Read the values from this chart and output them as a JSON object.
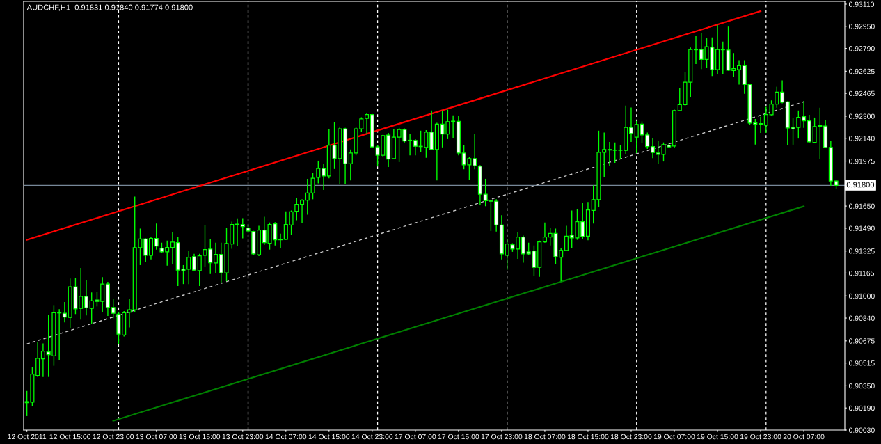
{
  "chart_data": {
    "type": "candlestick",
    "title": "AUDCHF,H1  0.91831 0.91840 0.91774 0.91800",
    "categories": [
      "12 Oct 2011",
      null,
      null,
      null,
      null,
      null,
      null,
      null,
      "12 Oct 15:00",
      null,
      null,
      null,
      null,
      null,
      null,
      null,
      "12 Oct 23:00",
      null,
      null,
      null,
      null,
      null,
      null,
      null,
      "13 Oct 07:00",
      null,
      null,
      null,
      null,
      null,
      null,
      null,
      "13 Oct 15:00",
      null,
      null,
      null,
      null,
      null,
      null,
      null,
      "13 Oct 23:00",
      null,
      null,
      null,
      null,
      null,
      null,
      null,
      "14 Oct 07:00",
      null,
      null,
      null,
      null,
      null,
      null,
      null,
      "14 Oct 15:00",
      null,
      null,
      null,
      null,
      null,
      null,
      null,
      "14 Oct 23:00",
      null,
      null,
      null,
      null,
      null,
      null,
      null,
      "17 Oct 07:00",
      null,
      null,
      null,
      null,
      null,
      null,
      null,
      "17 Oct 15:00",
      null,
      null,
      null,
      null,
      null,
      null,
      null,
      "17 Oct 23:00",
      null,
      null,
      null,
      null,
      null,
      null,
      null,
      "18 Oct 07:00",
      null,
      null,
      null,
      null,
      null,
      null,
      null,
      "18 Oct 15:00",
      null,
      null,
      null,
      null,
      null,
      null,
      null,
      "18 Oct 23:00",
      null,
      null,
      null,
      null,
      null,
      null,
      null,
      "19 Oct 07:00",
      null,
      null,
      null,
      null,
      null,
      null,
      null,
      "19 Oct 15:00",
      null,
      null,
      null,
      null,
      null,
      null,
      null,
      "19 Oct 23:00",
      null,
      null,
      null,
      null,
      null,
      null,
      null,
      "20 Oct 07:00",
      null,
      null,
      null,
      null,
      null,
      null
    ],
    "series": [
      {
        "color": "#00ff00",
        "ohlc": [
          [
            0.90228,
            0.90313,
            0.90131,
            0.90236
          ],
          [
            0.90232,
            0.90485,
            0.90201,
            0.90434
          ],
          [
            0.90424,
            0.90667,
            0.90414,
            0.90549
          ],
          [
            0.90545,
            0.90657,
            0.90414,
            0.906
          ],
          [
            0.90596,
            0.90863,
            0.90414,
            0.90576
          ],
          [
            0.90566,
            0.90934,
            0.90495,
            0.90879
          ],
          [
            0.90877,
            0.90904,
            0.90535,
            0.90881
          ],
          [
            0.90875,
            0.90956,
            0.90809,
            0.90847
          ],
          [
            0.90845,
            0.91126,
            0.90768,
            0.91066
          ],
          [
            0.91066,
            0.91132,
            0.90869,
            0.90906
          ],
          [
            0.9091,
            0.91203,
            0.90829,
            0.90997
          ],
          [
            0.90997,
            0.91116,
            0.90859,
            0.90914
          ],
          [
            0.9091,
            0.91025,
            0.90798,
            0.90964
          ],
          [
            0.9097,
            0.91031,
            0.90924,
            0.9096
          ],
          [
            0.9096,
            0.91136,
            0.90883,
            0.91086
          ],
          [
            0.91086,
            0.91102,
            0.90855,
            0.90916
          ],
          [
            0.90916,
            0.90977,
            0.90839,
            0.90875
          ],
          [
            0.90869,
            0.90883,
            0.90653,
            0.90724
          ],
          [
            0.90717,
            0.9089,
            0.90707,
            0.90879
          ],
          [
            0.90883,
            0.90977,
            0.90772,
            0.909
          ],
          [
            0.909,
            0.91719,
            0.90883,
            0.91349
          ],
          [
            0.91349,
            0.91487,
            0.91223,
            0.91412
          ],
          [
            0.91412,
            0.91416,
            0.91244,
            0.91294
          ],
          [
            0.91294,
            0.91426,
            0.91264,
            0.91416
          ],
          [
            0.91416,
            0.91523,
            0.91335,
            0.91361
          ],
          [
            0.91345,
            0.91385,
            0.91311,
            0.91319
          ],
          [
            0.91319,
            0.914,
            0.91219,
            0.91351
          ],
          [
            0.91351,
            0.91462,
            0.91228,
            0.91389
          ],
          [
            0.91385,
            0.91426,
            0.91072,
            0.91187
          ],
          [
            0.91193,
            0.91223,
            0.91086,
            0.91183
          ],
          [
            0.91193,
            0.91329,
            0.91086,
            0.9128
          ],
          [
            0.91284,
            0.91304,
            0.91179,
            0.91187
          ],
          [
            0.91183,
            0.91304,
            0.91072,
            0.9129
          ],
          [
            0.91294,
            0.91513,
            0.91213,
            0.91335
          ],
          [
            0.91339,
            0.9141,
            0.91159,
            0.9124
          ],
          [
            0.91238,
            0.91385,
            0.91163,
            0.913
          ],
          [
            0.913,
            0.91385,
            0.91096,
            0.91167
          ],
          [
            0.91167,
            0.91491,
            0.91106,
            0.91379
          ],
          [
            0.91375,
            0.91537,
            0.91341,
            0.91517
          ],
          [
            0.91515,
            0.91561,
            0.91361,
            0.91519
          ],
          [
            0.91517,
            0.91563,
            0.91416,
            0.91501
          ],
          [
            0.91491,
            0.91511,
            0.91456,
            0.9147
          ],
          [
            0.91466,
            0.9147,
            0.91294,
            0.91304
          ],
          [
            0.91298,
            0.91507,
            0.91288,
            0.91476
          ],
          [
            0.91476,
            0.91572,
            0.91369,
            0.91385
          ],
          [
            0.91381,
            0.91531,
            0.91335,
            0.91517
          ],
          [
            0.91521,
            0.91533,
            0.91365,
            0.91406
          ],
          [
            0.91406,
            0.9145,
            0.91349,
            0.91408
          ],
          [
            0.9141,
            0.91612,
            0.91406,
            0.91517
          ],
          [
            0.91513,
            0.91618,
            0.9144,
            0.91608
          ],
          [
            0.91612,
            0.91709,
            0.91547,
            0.91663
          ],
          [
            0.91663,
            0.91699,
            0.91527,
            0.91693
          ],
          [
            0.91693,
            0.91847,
            0.91588,
            0.91744
          ],
          [
            0.91744,
            0.91887,
            0.91699,
            0.91851
          ],
          [
            0.91857,
            0.91978,
            0.91814,
            0.91922
          ],
          [
            0.91922,
            0.91952,
            0.91766,
            0.91867
          ],
          [
            0.91867,
            0.92205,
            0.91851,
            0.9209
          ],
          [
            0.9209,
            0.92256,
            0.91918,
            0.91993
          ],
          [
            0.91993,
            0.92225,
            0.91806,
            0.92209
          ],
          [
            0.92209,
            0.92215,
            0.9181,
            0.91956
          ],
          [
            0.91956,
            0.92059,
            0.91835,
            0.92033
          ],
          [
            0.92033,
            0.92219,
            0.92017,
            0.92209
          ],
          [
            0.92209,
            0.92292,
            0.92185,
            0.9228
          ],
          [
            0.92284,
            0.92323,
            0.92175,
            0.92312
          ],
          [
            0.92312,
            0.92316,
            0.92074,
            0.92078
          ],
          [
            0.92078,
            0.9209,
            0.91942,
            0.92017
          ],
          [
            0.92017,
            0.92165,
            0.92007,
            0.92159
          ],
          [
            0.92163,
            0.92179,
            0.91932,
            0.91989
          ],
          [
            0.91993,
            0.92209,
            0.91989,
            0.92148
          ],
          [
            0.92148,
            0.92215,
            0.91968,
            0.92203
          ],
          [
            0.92203,
            0.92211,
            0.9211,
            0.9212
          ],
          [
            0.92122,
            0.92171,
            0.92017,
            0.92126
          ],
          [
            0.92124,
            0.92134,
            0.92017,
            0.92082
          ],
          [
            0.92082,
            0.92195,
            0.92043,
            0.9208
          ],
          [
            0.92074,
            0.92199,
            0.91999,
            0.92185
          ],
          [
            0.92185,
            0.92341,
            0.92053,
            0.92059
          ],
          [
            0.92059,
            0.92252,
            0.91835,
            0.92242
          ],
          [
            0.92242,
            0.92341,
            0.92074,
            0.92171
          ],
          [
            0.92171,
            0.92347,
            0.92134,
            0.9226
          ],
          [
            0.9226,
            0.92306,
            0.92138,
            0.92264
          ],
          [
            0.92262,
            0.923,
            0.92017,
            0.92033
          ],
          [
            0.92033,
            0.9209,
            0.91916,
            0.91948
          ],
          [
            0.91948,
            0.92007,
            0.91841,
            0.91993
          ],
          [
            0.91993,
            0.92171,
            0.91916,
            0.91942
          ],
          [
            0.91938,
            0.91946,
            0.91659,
            0.91736
          ],
          [
            0.91736,
            0.91847,
            0.91649,
            0.91689
          ],
          [
            0.91687,
            0.91697,
            0.9147,
            0.91685
          ],
          [
            0.91685,
            0.91699,
            0.91466,
            0.91513
          ],
          [
            0.91513,
            0.91584,
            0.91264,
            0.91304
          ],
          [
            0.91294,
            0.9141,
            0.91189,
            0.91375
          ],
          [
            0.91371,
            0.91381,
            0.91319,
            0.91339
          ],
          [
            0.91339,
            0.91462,
            0.91268,
            0.91426
          ],
          [
            0.91426,
            0.91436,
            0.9124,
            0.91304
          ],
          [
            0.91319,
            0.91385,
            0.91298,
            0.91304
          ],
          [
            0.91325,
            0.91365,
            0.91147,
            0.91207
          ],
          [
            0.91207,
            0.914,
            0.91138,
            0.91391
          ],
          [
            0.91391,
            0.91531,
            0.91385,
            0.91426
          ],
          [
            0.91426,
            0.91491,
            0.91365,
            0.91452
          ],
          [
            0.91452,
            0.91487,
            0.91228,
            0.91284
          ],
          [
            0.9128,
            0.91349,
            0.91106,
            0.91329
          ],
          [
            0.91329,
            0.91507,
            0.91325,
            0.91432
          ],
          [
            0.9144,
            0.91618,
            0.91349,
            0.9142
          ],
          [
            0.9142,
            0.91628,
            0.91406,
            0.91537
          ],
          [
            0.91537,
            0.91673,
            0.9141,
            0.9143
          ],
          [
            0.91432,
            0.91679,
            0.91402,
            0.91622
          ],
          [
            0.91618,
            0.918,
            0.91523,
            0.91697
          ],
          [
            0.91697,
            0.92195,
            0.91644,
            0.92039
          ],
          [
            0.92039,
            0.92181,
            0.91857,
            0.92059
          ],
          [
            0.92055,
            0.92114,
            0.91942,
            0.92059
          ],
          [
            0.92055,
            0.9211,
            0.91962,
            0.92053
          ],
          [
            0.92053,
            0.9209,
            0.91989,
            0.92055
          ],
          [
            0.92053,
            0.92377,
            0.92023,
            0.92219
          ],
          [
            0.92219,
            0.92363,
            0.92114,
            0.92175
          ],
          [
            0.92148,
            0.92266,
            0.92033,
            0.9224
          ],
          [
            0.92242,
            0.92262,
            0.92108,
            0.92165
          ],
          [
            0.92165,
            0.92181,
            0.92063,
            0.9208
          ],
          [
            0.9208,
            0.92138,
            0.91997,
            0.92037
          ],
          [
            0.92033,
            0.9212,
            0.91952,
            0.92023
          ],
          [
            0.92023,
            0.9211,
            0.91972,
            0.92094
          ],
          [
            0.9209,
            0.92108,
            0.9207,
            0.92078
          ],
          [
            0.92084,
            0.92347,
            0.9207,
            0.92341
          ],
          [
            0.92341,
            0.92503,
            0.92337,
            0.92383
          ],
          [
            0.92383,
            0.9262,
            0.92373,
            0.92545
          ],
          [
            0.92545,
            0.92796,
            0.92438,
            0.92782
          ],
          [
            0.9278,
            0.92879,
            0.92677,
            0.92782
          ],
          [
            0.92782,
            0.92903,
            0.9264,
            0.92711
          ],
          [
            0.92711,
            0.92863,
            0.9265,
            0.92802
          ],
          [
            0.92798,
            0.92869,
            0.9259,
            0.92636
          ],
          [
            0.92636,
            0.9296,
            0.92604,
            0.92782
          ],
          [
            0.92782,
            0.92839,
            0.92604,
            0.9278
          ],
          [
            0.92778,
            0.92948,
            0.92628,
            0.92632
          ],
          [
            0.9263,
            0.92756,
            0.92584,
            0.92644
          ],
          [
            0.92636,
            0.92705,
            0.92529,
            0.92665
          ],
          [
            0.92665,
            0.92705,
            0.92462,
            0.92529
          ],
          [
            0.92529,
            0.92533,
            0.92235,
            0.9225
          ],
          [
            0.92252,
            0.9228,
            0.92094,
            0.92242
          ],
          [
            0.92246,
            0.92296,
            0.92179,
            0.9224
          ],
          [
            0.92235,
            0.92367,
            0.92179,
            0.92312
          ],
          [
            0.9231,
            0.92414,
            0.92306,
            0.92387
          ],
          [
            0.92387,
            0.92513,
            0.92361,
            0.92474
          ],
          [
            0.92474,
            0.92559,
            0.92393,
            0.92401
          ],
          [
            0.92403,
            0.92408,
            0.9209,
            0.92215
          ],
          [
            0.92219,
            0.92286,
            0.92094,
            0.92209
          ],
          [
            0.92219,
            0.92341,
            0.92138,
            0.92292
          ],
          [
            0.92296,
            0.92408,
            0.92215,
            0.92266
          ],
          [
            0.92266,
            0.9231,
            0.92104,
            0.92114
          ],
          [
            0.9211,
            0.9229,
            0.92104,
            0.92225
          ],
          [
            0.92233,
            0.92361,
            0.91989,
            0.92227
          ],
          [
            0.92229,
            0.9227,
            0.9207,
            0.92074
          ],
          [
            0.92074,
            0.9212,
            0.91796,
            0.91831
          ],
          [
            0.91831,
            0.9184,
            0.91774,
            0.918
          ]
        ]
      },
      {
        "type": "line",
        "color": "#ff0000",
        "x": [
          "12 Oct 2011",
          "19 Oct 23:00"
        ],
        "values": [
          0.91406,
          0.9306
        ]
      },
      {
        "type": "line",
        "color": "#c8c8c8",
        "line_style": "dashed",
        "x": [
          "12 Oct 2011",
          "20 Oct 07:00"
        ],
        "values": [
          0.90653,
          0.92404
        ]
      },
      {
        "type": "line",
        "color": "#008000",
        "x": [
          "12 Oct 23:00",
          "20 Oct 07:00"
        ],
        "values": [
          0.90097,
          0.91648
        ]
      }
    ],
    "ylim": [
      0.9003,
      0.9313
    ],
    "yticks": [
      {
        "value": 0.9311,
        "label": "0.93110"
      },
      {
        "value": 0.9295,
        "label": "0.92950"
      },
      {
        "value": 0.9279,
        "label": "0.92790"
      },
      {
        "value": 0.92625,
        "label": "0.92625"
      },
      {
        "value": 0.92465,
        "label": "0.92465"
      },
      {
        "value": 0.923,
        "label": "0.92300"
      },
      {
        "value": 0.9214,
        "label": "0.92140"
      },
      {
        "value": 0.91975,
        "label": "0.91975"
      },
      {
        "value": 0.9165,
        "label": "0.91650"
      },
      {
        "value": 0.9149,
        "label": "0.91490"
      },
      {
        "value": 0.91325,
        "label": "0.91325"
      },
      {
        "value": 0.91165,
        "label": "0.91165"
      },
      {
        "value": 0.91,
        "label": "0.91000"
      },
      {
        "value": 0.9084,
        "label": "0.90840"
      },
      {
        "value": 0.90675,
        "label": "0.90675"
      },
      {
        "value": 0.90515,
        "label": "0.90515"
      },
      {
        "value": 0.9035,
        "label": "0.90350"
      },
      {
        "value": 0.9019,
        "label": "0.90190"
      },
      {
        "value": 0.9003,
        "label": "0.90030"
      }
    ],
    "ref_lines": [
      {
        "axis": "y",
        "value": 0.918,
        "label": "0.91800",
        "color": "#778899",
        "line_style": "solid"
      }
    ],
    "grid": false
  }
}
